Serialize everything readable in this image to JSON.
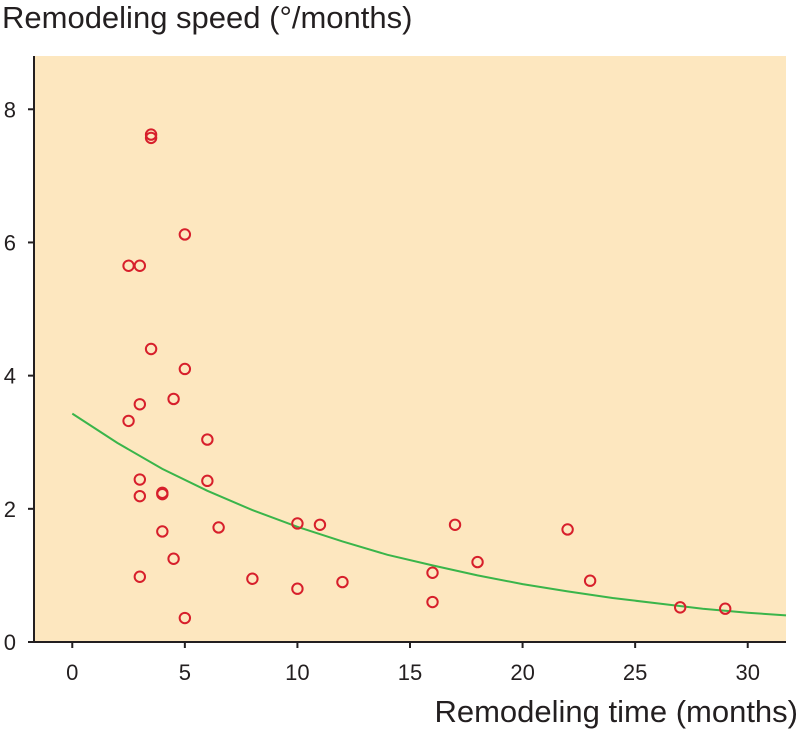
{
  "chart_data": {
    "type": "scatter",
    "title": "",
    "ylabel": "Remodeling speed (°/months)",
    "xlabel": "Remodeling time (months)",
    "xlim": [
      -1.7,
      31.7
    ],
    "ylim": [
      0,
      8.8
    ],
    "x_ticks": [
      0,
      5,
      10,
      15,
      20,
      25,
      30
    ],
    "y_ticks": [
      0,
      2,
      4,
      6,
      8
    ],
    "grid": false,
    "colors": {
      "plot_background": "#fde7bf",
      "axis": "#231f20",
      "marker": "#d71f2b",
      "fit_line": "#3ab54a"
    },
    "series": [
      {
        "name": "observations",
        "marker": "open-circle",
        "x": [
          3.5,
          3.5,
          5,
          2.5,
          3,
          3.5,
          5,
          4.5,
          3,
          2.5,
          6,
          3,
          6,
          3,
          4,
          4,
          6.5,
          4,
          4.5,
          3,
          5,
          8,
          10,
          10,
          11,
          12,
          16,
          16,
          17,
          18,
          22,
          23,
          27,
          29
        ],
        "y": [
          7.62,
          7.57,
          6.12,
          5.65,
          5.65,
          4.4,
          4.1,
          3.65,
          3.57,
          3.32,
          3.04,
          2.44,
          2.42,
          2.19,
          2.24,
          2.22,
          1.72,
          1.66,
          1.25,
          0.98,
          0.36,
          0.95,
          1.78,
          0.8,
          1.76,
          0.9,
          1.04,
          0.6,
          1.76,
          1.2,
          1.69,
          0.92,
          0.52,
          0.5
        ]
      },
      {
        "name": "fitted curve",
        "type": "line",
        "x": [
          0,
          2,
          4,
          6,
          8,
          10,
          12,
          14,
          16,
          18,
          20,
          22,
          24,
          26,
          28,
          30,
          31.7
        ],
        "y": [
          3.43,
          2.99,
          2.6,
          2.27,
          1.98,
          1.73,
          1.51,
          1.31,
          1.15,
          1.0,
          0.87,
          0.76,
          0.66,
          0.58,
          0.5,
          0.44,
          0.4
        ]
      }
    ]
  }
}
